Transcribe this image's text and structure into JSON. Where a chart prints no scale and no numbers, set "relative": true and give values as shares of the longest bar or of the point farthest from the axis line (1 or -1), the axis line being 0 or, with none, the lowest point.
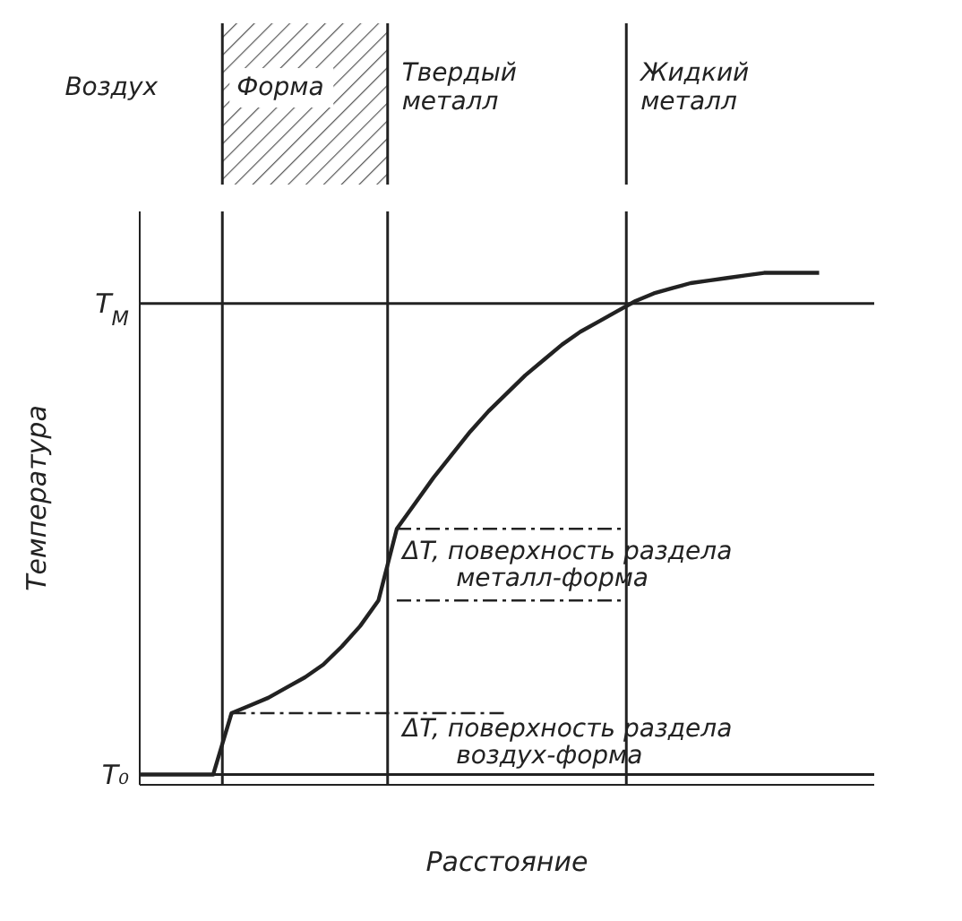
{
  "chart_data": {
    "type": "line",
    "xlabel": "Расстояние",
    "ylabel": "Температура",
    "relative": true,
    "categories": [
      null,
      null,
      null,
      null,
      null,
      null,
      null,
      null,
      null,
      null,
      null,
      null,
      null,
      null,
      null,
      null,
      null,
      null,
      null,
      null,
      null,
      null,
      null,
      null,
      null,
      null,
      null,
      null,
      null,
      null,
      null,
      null,
      null,
      null,
      null,
      null,
      null,
      null,
      null,
      null,
      null
    ],
    "series": [
      {
        "color": "#222222",
        "values": [
          0.02,
          0.02,
          0.02,
          0.02,
          0.02,
          0.14,
          0.155,
          0.17,
          0.19,
          0.21,
          0.235,
          0.27,
          0.31,
          0.36,
          0.5,
          0.55,
          0.6,
          0.645,
          0.69,
          0.73,
          0.765,
          0.8,
          0.83,
          0.86,
          0.885,
          0.905,
          0.925,
          0.945,
          0.96,
          0.97,
          0.98,
          0.985,
          0.99,
          0.995,
          1.0,
          1.0,
          1.0,
          1.0,
          null,
          null,
          null
        ]
      }
    ],
    "marker": "none",
    "line_style": "solid",
    "ref_lines": [
      {
        "axis": "y",
        "value": 0.94,
        "label": "T$_{M}$",
        "line_style": "solid"
      },
      {
        "axis": "y",
        "value": 0.02,
        "label": "T₀",
        "line_style": "solid"
      },
      {
        "axis": "y",
        "value": 0.14,
        "line_style": "dashed"
      },
      {
        "axis": "y",
        "value": 0.5,
        "line_style": "dashed"
      },
      {
        "axis": "y",
        "value": 0.36,
        "line_style": "dashed"
      }
    ],
    "annotations": [
      "Воздух",
      "Форма",
      "Твердый\nметалл",
      "Жидкий\nметалл",
      "ΔT, поверхность раздела\nметалл-форма",
      "ΔT, поверхность раздела\nвоздух-форма"
    ]
  }
}
